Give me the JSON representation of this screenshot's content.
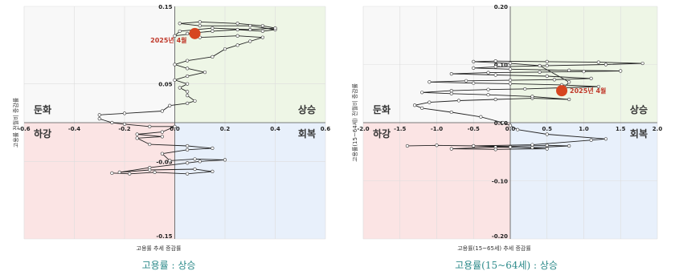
{
  "chart_data": [
    {
      "type": "scatter",
      "xlabel": "고용률 추세 증감률",
      "ylabel": "고용률 전월비 증감률",
      "xlim": [
        -0.6,
        0.6
      ],
      "ylim": [
        -0.15,
        0.15
      ],
      "x_ticks": [
        "-0.6",
        "-0.4",
        "-0.2",
        "0.0",
        "0.2",
        "0.4",
        "0.6"
      ],
      "y_ticks": [
        "0.15",
        "0.05",
        "-0.05",
        "-0.15"
      ],
      "y_tick_values": [
        0.15,
        0.05,
        -0.05,
        -0.15
      ],
      "x_tick_values": [
        -0.6,
        -0.4,
        -0.2,
        0.0,
        0.2,
        0.4,
        0.6
      ],
      "quadrants": {
        "top_left": "둔화",
        "top_right": "상승",
        "bottom_left": "하강",
        "bottom_right": "회복"
      },
      "quadrant_colors": {
        "top_left": "#f8f8f8",
        "top_right": "#eef6e6",
        "bottom_left": "#fbe4e4",
        "bottom_right": "#e8f0fb"
      },
      "current_point": {
        "x": 0.08,
        "y": 0.115,
        "label": "2025년 4월",
        "color": "#d64520"
      },
      "points": [
        [
          -0.25,
          -0.065
        ],
        [
          -0.18,
          -0.066
        ],
        [
          -0.08,
          -0.064
        ],
        [
          0.05,
          -0.066
        ],
        [
          0.15,
          -0.063
        ],
        [
          0.08,
          -0.06
        ],
        [
          -0.1,
          -0.061
        ],
        [
          -0.22,
          -0.064
        ],
        [
          -0.1,
          -0.058
        ],
        [
          0.05,
          -0.052
        ],
        [
          0.1,
          -0.05
        ],
        [
          0.2,
          -0.048
        ],
        [
          0.08,
          -0.047
        ],
        [
          -0.02,
          -0.049
        ],
        [
          -0.05,
          -0.04
        ],
        [
          0.05,
          -0.035
        ],
        [
          0.15,
          -0.033
        ],
        [
          0.05,
          -0.03
        ],
        [
          -0.1,
          -0.028
        ],
        [
          -0.15,
          -0.02
        ],
        [
          -0.05,
          -0.018
        ],
        [
          -0.15,
          -0.015
        ],
        [
          -0.05,
          -0.012
        ],
        [
          0.0,
          -0.005
        ],
        [
          -0.1,
          -0.005
        ],
        [
          -0.2,
          -0.002
        ],
        [
          -0.25,
          0.0
        ],
        [
          -0.3,
          0.005
        ],
        [
          -0.3,
          0.01
        ],
        [
          -0.2,
          0.012
        ],
        [
          -0.05,
          0.015
        ],
        [
          -0.02,
          0.022
        ],
        [
          0.05,
          0.025
        ],
        [
          0.08,
          0.028
        ],
        [
          0.05,
          0.035
        ],
        [
          0.05,
          0.04
        ],
        [
          0.02,
          0.045
        ],
        [
          0.05,
          0.05
        ],
        [
          0.0,
          0.055
        ],
        [
          0.05,
          0.06
        ],
        [
          0.12,
          0.065
        ],
        [
          0.05,
          0.07
        ],
        [
          0.0,
          0.075
        ],
        [
          0.05,
          0.08
        ],
        [
          0.15,
          0.085
        ],
        [
          0.2,
          0.095
        ],
        [
          0.25,
          0.1
        ],
        [
          0.3,
          0.105
        ],
        [
          0.35,
          0.11
        ],
        [
          0.25,
          0.112
        ],
        [
          0.1,
          0.11
        ],
        [
          0.05,
          0.115
        ],
        [
          0.15,
          0.118
        ],
        [
          0.25,
          0.12
        ],
        [
          0.35,
          0.118
        ],
        [
          0.4,
          0.12
        ],
        [
          0.3,
          0.125
        ],
        [
          0.1,
          0.125
        ],
        [
          0.02,
          0.128
        ],
        [
          0.1,
          0.13
        ],
        [
          0.25,
          0.128
        ],
        [
          0.35,
          0.125
        ],
        [
          0.4,
          0.122
        ],
        [
          0.3,
          0.12
        ],
        [
          0.15,
          0.122
        ],
        [
          0.02,
          0.118
        ],
        [
          0.0,
          0.112
        ],
        [
          0.08,
          0.115
        ]
      ]
    },
    {
      "type": "scatter",
      "xlabel": "고용률(15~65세) 추세 증감률",
      "ylabel": "고용률(15~64세) 전월비 증감률",
      "xlim": [
        -2.0,
        2.0
      ],
      "ylim": [
        -0.2,
        0.2
      ],
      "x_ticks": [
        "-2.0",
        "-1.5",
        "-1.0",
        "-0.5",
        "0.0",
        "0.5",
        "1.0",
        "1.5",
        "2.0"
      ],
      "y_ticks": [
        "0.20",
        "0.10",
        "0.00",
        "-0.10",
        "-0.20"
      ],
      "y_tick_values": [
        0.2,
        0.1,
        0.0,
        -0.1,
        -0.2
      ],
      "x_tick_values": [
        -2.0,
        -1.5,
        -1.0,
        -0.5,
        0.0,
        0.5,
        1.0,
        1.5,
        2.0
      ],
      "quadrants": {
        "top_left": "둔화",
        "top_right": "상승",
        "bottom_left": "하강",
        "bottom_right": "회복"
      },
      "quadrant_colors": {
        "top_left": "#f8f8f8",
        "top_right": "#eef6e6",
        "bottom_left": "#fbe4e4",
        "bottom_right": "#e8f0fb"
      },
      "current_point": {
        "x": 0.7,
        "y": 0.055,
        "label": "2025년 4월",
        "color": "#d64520"
      },
      "points": [
        [
          -1.4,
          -0.04
        ],
        [
          -1.0,
          -0.039
        ],
        [
          -0.5,
          -0.04
        ],
        [
          0.0,
          -0.041
        ],
        [
          0.5,
          -0.039
        ],
        [
          0.8,
          -0.04
        ],
        [
          0.3,
          -0.043
        ],
        [
          -0.2,
          -0.042
        ],
        [
          -0.8,
          -0.045
        ],
        [
          -0.2,
          -0.046
        ],
        [
          0.5,
          -0.045
        ],
        [
          0.0,
          -0.042
        ],
        [
          -0.5,
          -0.04
        ],
        [
          0.3,
          -0.038
        ],
        [
          1.1,
          -0.03
        ],
        [
          1.3,
          -0.028
        ],
        [
          0.5,
          -0.02
        ],
        [
          0.1,
          -0.012
        ],
        [
          0.0,
          -0.005
        ],
        [
          -0.1,
          0.0
        ],
        [
          -0.4,
          0.01
        ],
        [
          -0.8,
          0.018
        ],
        [
          -1.2,
          0.025
        ],
        [
          -1.3,
          0.03
        ],
        [
          -1.1,
          0.035
        ],
        [
          -0.7,
          0.038
        ],
        [
          -0.2,
          0.04
        ],
        [
          0.3,
          0.042
        ],
        [
          0.8,
          0.04
        ],
        [
          0.3,
          0.045
        ],
        [
          -0.3,
          0.048
        ],
        [
          -0.8,
          0.05
        ],
        [
          -1.2,
          0.052
        ],
        [
          -0.8,
          0.055
        ],
        [
          -0.3,
          0.057
        ],
        [
          0.2,
          0.058
        ],
        [
          0.7,
          0.06
        ],
        [
          1.2,
          0.062
        ],
        [
          0.7,
          0.065
        ],
        [
          0.0,
          0.067
        ],
        [
          -0.5,
          0.068
        ],
        [
          -1.1,
          0.07
        ],
        [
          -0.6,
          0.072
        ],
        [
          0.0,
          0.073
        ],
        [
          0.6,
          0.074
        ],
        [
          1.1,
          0.076
        ],
        [
          0.5,
          0.08
        ],
        [
          -0.2,
          0.082
        ],
        [
          -0.8,
          0.084
        ],
        [
          -0.3,
          0.086
        ],
        [
          0.4,
          0.087
        ],
        [
          1.0,
          0.088
        ],
        [
          1.5,
          0.089
        ],
        [
          0.8,
          0.09
        ],
        [
          0.0,
          0.092
        ],
        [
          -0.5,
          0.094
        ],
        [
          -0.2,
          0.096
        ],
        [
          0.5,
          0.098
        ],
        [
          1.3,
          0.1
        ],
        [
          1.8,
          0.102
        ],
        [
          1.2,
          0.104
        ],
        [
          0.5,
          0.105
        ],
        [
          -0.2,
          0.106
        ],
        [
          -0.5,
          0.105
        ],
        [
          0.0,
          0.102
        ],
        [
          0.4,
          0.098
        ],
        [
          0.8,
          0.07
        ],
        [
          0.7,
          0.055
        ]
      ]
    }
  ],
  "captions": [
    "고용률 : 상승",
    "고용률(15~64세) : 상승"
  ]
}
